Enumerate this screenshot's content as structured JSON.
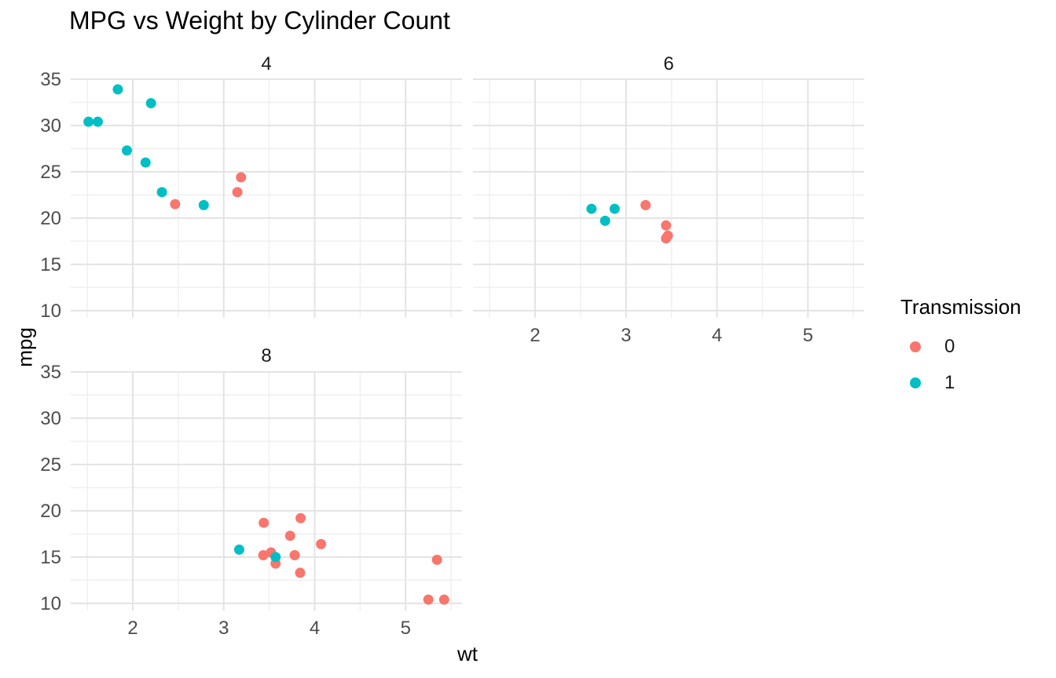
{
  "title": "MPG vs Weight by Cylinder Count",
  "axes": {
    "x_label": "wt",
    "y_label": "mpg"
  },
  "legend": {
    "title": "Transmission",
    "items": [
      {
        "label": "0",
        "color": "#F8766D"
      },
      {
        "label": "1",
        "color": "#00BFC4"
      }
    ]
  },
  "colors": {
    "background": "#ffffff",
    "grid_major": "#e3e3e3",
    "grid_minor": "#efefef",
    "tick_label": "#4d4d4d",
    "transmission_0": "#F8766D",
    "transmission_1": "#00BFC4"
  },
  "chart_data": {
    "type": "scatter",
    "title": "MPG vs Weight by Cylinder Count",
    "xlabel": "wt",
    "ylabel": "mpg",
    "facet_variable": "cylinder count",
    "color_variable": "Transmission",
    "x_range": [
      1.317,
      5.62
    ],
    "y_range": [
      9.225,
      35.075
    ],
    "x_ticks": [
      2,
      3,
      4,
      5
    ],
    "y_ticks": [
      10,
      15,
      20,
      25,
      30,
      35
    ],
    "x_minor": [
      1.5,
      2.5,
      3.5,
      4.5,
      5.5
    ],
    "y_minor": [
      12.5,
      17.5,
      22.5,
      27.5,
      32.5
    ],
    "grid": true,
    "legend_position": "right",
    "facets": [
      {
        "label": "4",
        "points": [
          {
            "wt": 2.32,
            "mpg": 22.8,
            "am": 1
          },
          {
            "wt": 3.19,
            "mpg": 24.4,
            "am": 0
          },
          {
            "wt": 3.15,
            "mpg": 22.8,
            "am": 0
          },
          {
            "wt": 2.2,
            "mpg": 32.4,
            "am": 1
          },
          {
            "wt": 1.615,
            "mpg": 30.4,
            "am": 1
          },
          {
            "wt": 1.835,
            "mpg": 33.9,
            "am": 1
          },
          {
            "wt": 2.465,
            "mpg": 21.5,
            "am": 0
          },
          {
            "wt": 1.935,
            "mpg": 27.3,
            "am": 1
          },
          {
            "wt": 2.14,
            "mpg": 26.0,
            "am": 1
          },
          {
            "wt": 1.513,
            "mpg": 30.4,
            "am": 1
          },
          {
            "wt": 2.78,
            "mpg": 21.4,
            "am": 1
          }
        ]
      },
      {
        "label": "6",
        "points": [
          {
            "wt": 2.62,
            "mpg": 21.0,
            "am": 1
          },
          {
            "wt": 2.875,
            "mpg": 21.0,
            "am": 1
          },
          {
            "wt": 3.215,
            "mpg": 21.4,
            "am": 0
          },
          {
            "wt": 3.46,
            "mpg": 18.1,
            "am": 0
          },
          {
            "wt": 3.44,
            "mpg": 19.2,
            "am": 0
          },
          {
            "wt": 3.44,
            "mpg": 17.8,
            "am": 0
          },
          {
            "wt": 2.77,
            "mpg": 19.7,
            "am": 1
          }
        ]
      },
      {
        "label": "8",
        "points": [
          {
            "wt": 3.44,
            "mpg": 18.7,
            "am": 0
          },
          {
            "wt": 3.57,
            "mpg": 14.3,
            "am": 0
          },
          {
            "wt": 4.07,
            "mpg": 16.4,
            "am": 0
          },
          {
            "wt": 3.73,
            "mpg": 17.3,
            "am": 0
          },
          {
            "wt": 3.78,
            "mpg": 15.2,
            "am": 0
          },
          {
            "wt": 5.25,
            "mpg": 10.4,
            "am": 0
          },
          {
            "wt": 5.424,
            "mpg": 10.4,
            "am": 0
          },
          {
            "wt": 5.345,
            "mpg": 14.7,
            "am": 0
          },
          {
            "wt": 3.52,
            "mpg": 15.5,
            "am": 0
          },
          {
            "wt": 3.435,
            "mpg": 15.2,
            "am": 0
          },
          {
            "wt": 3.84,
            "mpg": 13.3,
            "am": 0
          },
          {
            "wt": 3.845,
            "mpg": 19.2,
            "am": 0
          },
          {
            "wt": 3.17,
            "mpg": 15.8,
            "am": 1
          },
          {
            "wt": 3.57,
            "mpg": 15.0,
            "am": 1
          }
        ]
      }
    ]
  }
}
